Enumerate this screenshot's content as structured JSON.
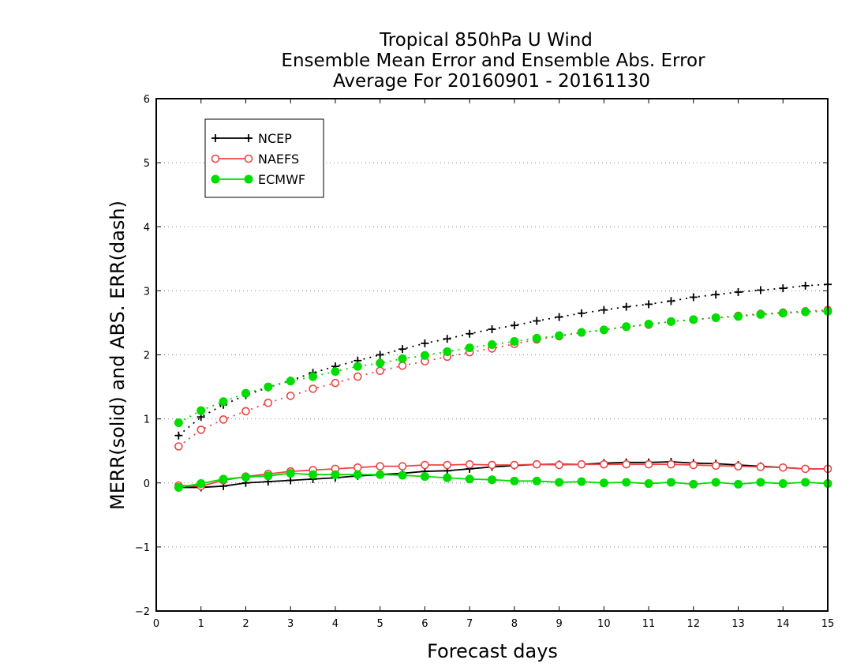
{
  "chart_data": {
    "type": "line",
    "title_lines": [
      "Tropical 850hPa U Wind",
      "Ensemble Mean Error and Ensemble Abs. Error",
      "Average For 20160901 - 20161130"
    ],
    "xlabel": "Forecast days",
    "ylabel": "MERR(solid) and ABS. ERR(dash)",
    "xlim": [
      0,
      15
    ],
    "ylim": [
      -2,
      6
    ],
    "xticks": [
      0,
      1,
      2,
      3,
      4,
      5,
      6,
      7,
      8,
      9,
      10,
      11,
      12,
      13,
      14,
      15
    ],
    "yticks": [
      -2,
      -1,
      0,
      1,
      2,
      3,
      4,
      5,
      6
    ],
    "grid": "horizontal dotted",
    "legend_position": "top-left",
    "x": [
      0.5,
      1,
      1.5,
      2,
      2.5,
      3,
      3.5,
      4,
      4.5,
      5,
      5.5,
      6,
      6.5,
      7,
      7.5,
      8,
      8.5,
      9,
      9.5,
      10,
      10.5,
      11,
      11.5,
      12,
      12.5,
      13,
      13.5,
      14,
      14.5,
      15
    ],
    "series": [
      {
        "name": "NCEP",
        "color": "#000000",
        "marker": "plus",
        "merr": [
          -0.07,
          -0.07,
          -0.05,
          0.0,
          0.02,
          0.04,
          0.06,
          0.08,
          0.11,
          0.13,
          0.15,
          0.18,
          0.19,
          0.22,
          0.25,
          0.27,
          0.29,
          0.29,
          0.29,
          0.31,
          0.32,
          0.32,
          0.33,
          0.31,
          0.3,
          0.28,
          0.26,
          0.24,
          0.22,
          0.22
        ],
        "abs_err": [
          0.74,
          1.03,
          1.22,
          1.37,
          1.49,
          1.6,
          1.72,
          1.82,
          1.91,
          2.0,
          2.09,
          2.18,
          2.25,
          2.33,
          2.4,
          2.46,
          2.53,
          2.59,
          2.65,
          2.7,
          2.75,
          2.79,
          2.84,
          2.9,
          2.94,
          2.98,
          3.01,
          3.04,
          3.08,
          3.1
        ]
      },
      {
        "name": "NAEFS",
        "color": "#ee4444",
        "marker": "open-circle",
        "merr": [
          -0.04,
          -0.05,
          0.04,
          0.1,
          0.14,
          0.18,
          0.2,
          0.22,
          0.24,
          0.26,
          0.26,
          0.28,
          0.28,
          0.29,
          0.28,
          0.28,
          0.29,
          0.28,
          0.29,
          0.29,
          0.29,
          0.29,
          0.29,
          0.28,
          0.27,
          0.26,
          0.25,
          0.24,
          0.22,
          0.22
        ],
        "abs_err": [
          0.57,
          0.83,
          0.99,
          1.12,
          1.25,
          1.36,
          1.47,
          1.56,
          1.66,
          1.75,
          1.83,
          1.9,
          1.97,
          2.04,
          2.1,
          2.17,
          2.24,
          2.29,
          2.35,
          2.39,
          2.44,
          2.47,
          2.52,
          2.55,
          2.58,
          2.61,
          2.64,
          2.66,
          2.68,
          2.7
        ]
      },
      {
        "name": "ECMWF",
        "color": "#00dd00",
        "marker": "filled-circle",
        "merr": [
          -0.07,
          -0.01,
          0.06,
          0.09,
          0.11,
          0.15,
          0.13,
          0.13,
          0.13,
          0.13,
          0.12,
          0.1,
          0.08,
          0.06,
          0.05,
          0.03,
          0.03,
          0.01,
          0.02,
          0.0,
          0.01,
          -0.01,
          0.01,
          -0.02,
          0.01,
          -0.02,
          0.01,
          -0.01,
          0.01,
          -0.01
        ],
        "abs_err": [
          0.94,
          1.13,
          1.27,
          1.4,
          1.5,
          1.59,
          1.66,
          1.74,
          1.82,
          1.87,
          1.94,
          1.99,
          2.05,
          2.11,
          2.16,
          2.21,
          2.26,
          2.3,
          2.35,
          2.39,
          2.44,
          2.48,
          2.52,
          2.55,
          2.58,
          2.6,
          2.63,
          2.65,
          2.67,
          2.68
        ]
      }
    ]
  }
}
